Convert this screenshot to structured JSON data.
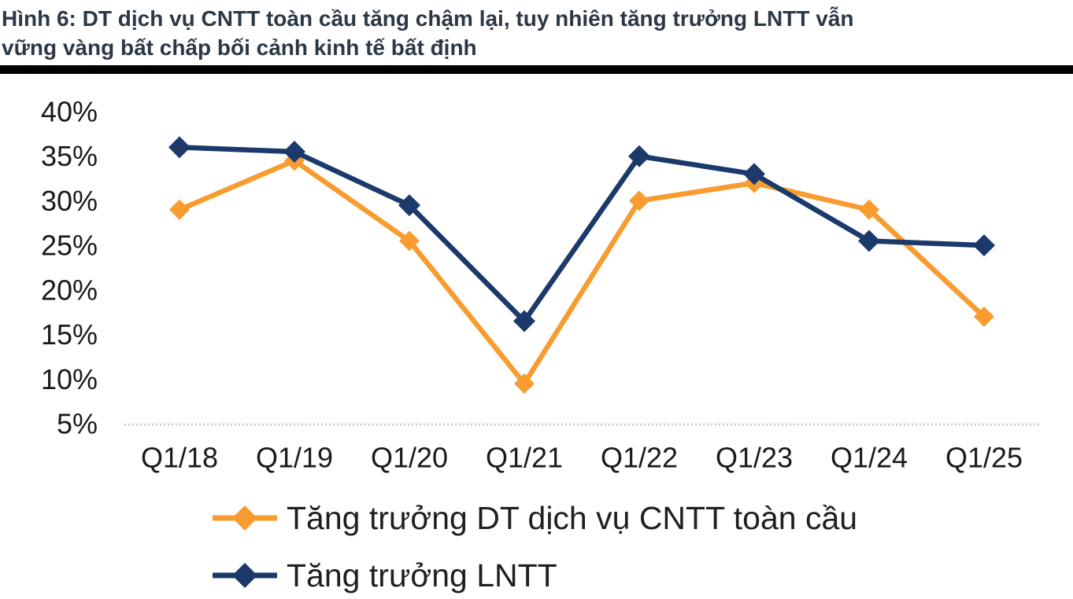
{
  "header": {
    "title_line1": "Hình 6: DT dịch vụ CNTT toàn cầu tăng chậm lại, tuy nhiên tăng trưởng LNTT vẫn",
    "title_line2": "vững vàng bất chấp bối cảnh kinh tế bất định"
  },
  "chart_data": {
    "type": "line",
    "title": "Hình 6: DT dịch vụ CNTT toàn cầu tăng chậm lại, tuy nhiên tăng trưởng LNTT vẫn vững vàng bất chấp bối cảnh kinh tế bất định",
    "categories": [
      "Q1/18",
      "Q1/19",
      "Q1/20",
      "Q1/21",
      "Q1/22",
      "Q1/23",
      "Q1/24",
      "Q1/25"
    ],
    "y_ticks": [
      "40%",
      "35%",
      "30%",
      "25%",
      "20%",
      "15%",
      "10%",
      "5%"
    ],
    "unit": "%",
    "ylim": [
      5,
      40
    ],
    "grid": false,
    "legend_position": "bottom",
    "axis_line_color": "#c8cbce",
    "tick_text_color": "#1a1a1a",
    "series": [
      {
        "name": "Tăng trưởng DT dịch vụ CNTT toàn cầu",
        "color": "#f89c30",
        "marker": "diamond",
        "values": [
          29,
          34.5,
          25.5,
          9.5,
          30,
          32,
          29,
          17
        ]
      },
      {
        "name": "Tăng trưởng LNTT",
        "color": "#1b3a6b",
        "marker": "diamond",
        "values": [
          36,
          35.5,
          29.5,
          16.5,
          35,
          33,
          25.5,
          25
        ]
      }
    ]
  }
}
